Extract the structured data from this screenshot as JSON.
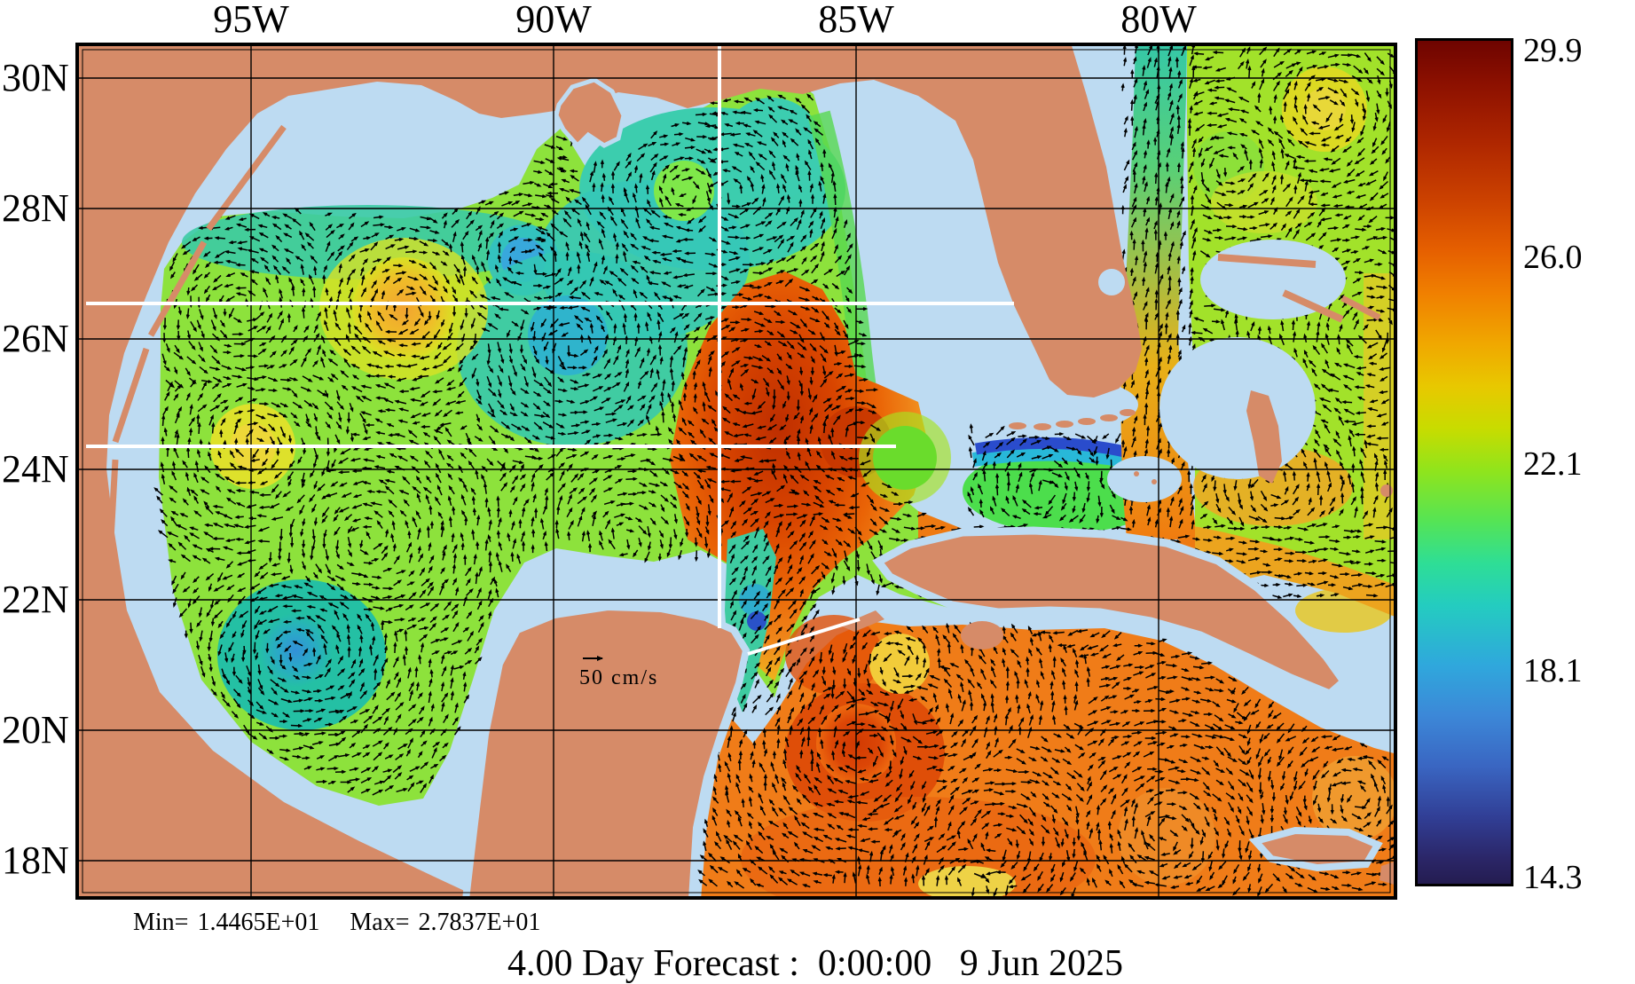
{
  "figure": {
    "title": "4.00 Day Forecast :  0:00:00   9 Jun 2025",
    "kind": "Sea surface temperature forecast map with surface current vectors"
  },
  "stats": {
    "min_label": "Min=",
    "min_value": "1.4465E+01",
    "max_label": "Max=",
    "max_value": "2.7837E+01"
  },
  "vector_scale": {
    "label": "50 cm/s"
  },
  "axes": {
    "longitude_ticks": [
      "95W",
      "90W",
      "85W",
      "80W"
    ],
    "latitude_ticks": [
      "30N",
      "28N",
      "26N",
      "24N",
      "22N",
      "20N",
      "18N"
    ]
  },
  "colorbar": {
    "tick_labels": [
      "29.9",
      "26.0",
      "22.1",
      "18.1",
      "14.3"
    ],
    "top_value": 29.9,
    "bottom_value": 14.3
  },
  "chart_data": {
    "type": "heatmap",
    "field": "temperature",
    "colorbar_ticks": [
      29.9,
      26.0,
      22.1,
      18.1,
      14.3
    ],
    "field_min": 14.465,
    "field_max": 27.837,
    "x_gridlines": [
      "95W",
      "90W",
      "85W",
      "80W"
    ],
    "y_gridlines": [
      "30N",
      "28N",
      "26N",
      "24N",
      "22N",
      "20N",
      "18N"
    ],
    "vector_reference": "50 cm/s",
    "legend_position": "right",
    "grid": true
  },
  "colors": {
    "land": "#D68B68",
    "water": "#BDDBF2",
    "gulf_base": "#8DE23C",
    "carib_base": "#F07C18",
    "atlantic_base": "#A2E22A",
    "loop_core": "#BE2E00",
    "white_line": "#FFFFFF",
    "vector": "#000000",
    "frame": "#000000"
  }
}
